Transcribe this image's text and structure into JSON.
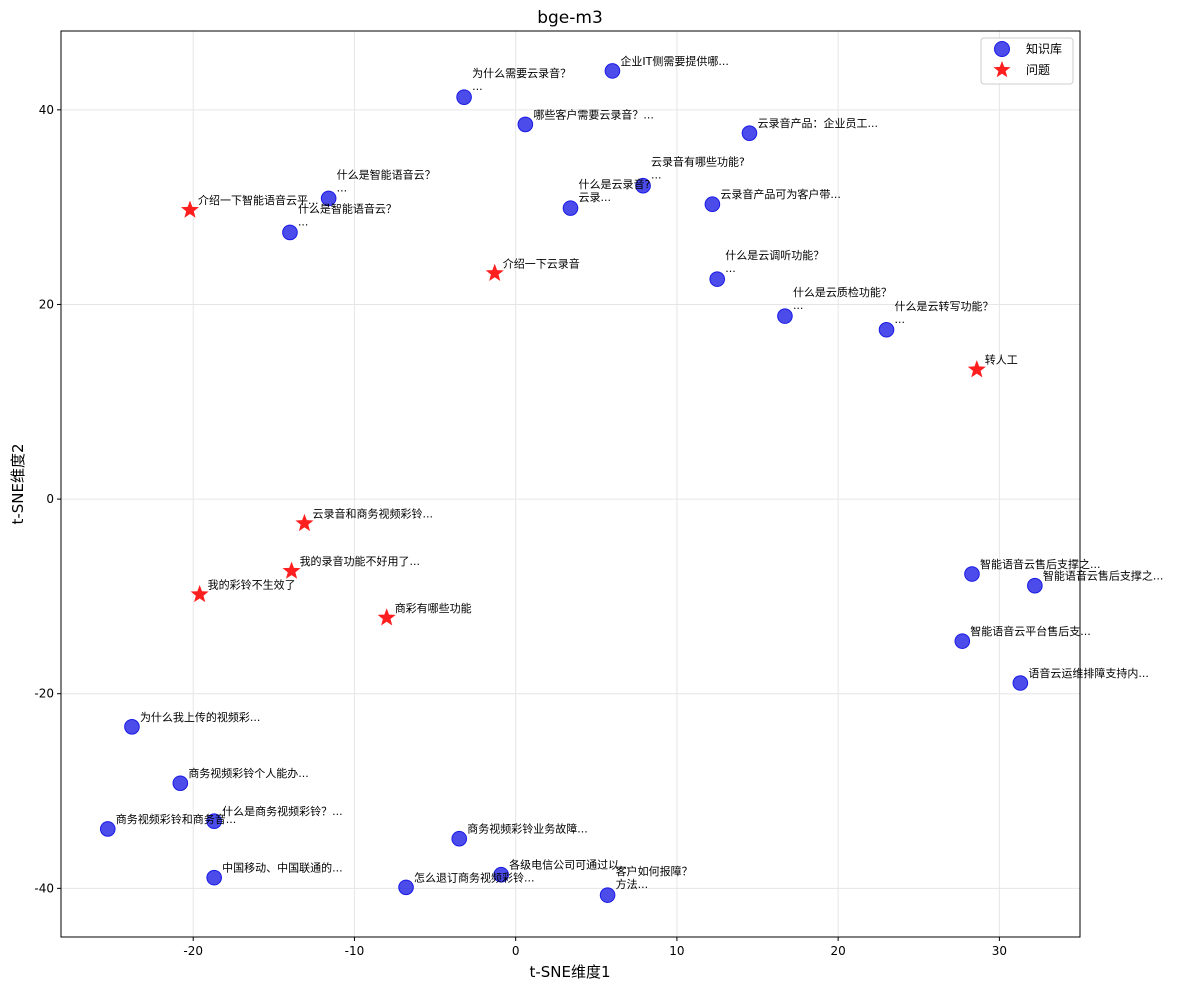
{
  "chart_data": {
    "type": "scatter",
    "title": "bge-m3",
    "xlabel": "t-SNE维度1",
    "ylabel": "t-SNE维度2",
    "xlim": [
      -28.2,
      35.0
    ],
    "ylim": [
      -45.0,
      48.1
    ],
    "xticks": [
      -20,
      -10,
      0,
      10,
      20,
      30
    ],
    "yticks": [
      -40,
      -20,
      0,
      20,
      40
    ],
    "grid": true,
    "legend_position": "top-right",
    "series": [
      {
        "name": "知识库",
        "marker": "circle",
        "color": "#1a1ae6",
        "points": [
          {
            "x": -3.2,
            "y": 41.3,
            "label": "为什么需要云录音？\n..."
          },
          {
            "x": 6.0,
            "y": 44.0,
            "label": "企业IT侧需要提供哪..."
          },
          {
            "x": 0.6,
            "y": 38.5,
            "label": "哪些客户需要云录音？..."
          },
          {
            "x": 14.5,
            "y": 37.6,
            "label": "云录音产品：企业员工..."
          },
          {
            "x": 7.9,
            "y": 32.2,
            "label": "云录音有哪些功能?\n..."
          },
          {
            "x": 3.4,
            "y": 29.9,
            "label": "什么是云录音?\n云录..."
          },
          {
            "x": 12.2,
            "y": 30.3,
            "label": "云录音产品可为客户带..."
          },
          {
            "x": -11.6,
            "y": 30.9,
            "label": "什么是智能语音云？\n..."
          },
          {
            "x": -14.0,
            "y": 27.4,
            "label": "什么是智能语音云？\n..."
          },
          {
            "x": 12.5,
            "y": 22.6,
            "label": "什么是云调听功能？\n..."
          },
          {
            "x": 16.7,
            "y": 18.8,
            "label": "什么是云质检功能？\n..."
          },
          {
            "x": 23.0,
            "y": 17.4,
            "label": "什么是云转写功能？\n..."
          },
          {
            "x": 28.3,
            "y": -7.7,
            "label": "智能语音云售后支撑之..."
          },
          {
            "x": 32.2,
            "y": -8.9,
            "label": "智能语音云售后支撑之..."
          },
          {
            "x": 27.7,
            "y": -14.6,
            "label": "智能语音云平台售后支..."
          },
          {
            "x": 31.3,
            "y": -18.9,
            "label": "语音云运维排障支持内..."
          },
          {
            "x": -23.8,
            "y": -23.4,
            "label": "为什么我上传的视频彩..."
          },
          {
            "x": -20.8,
            "y": -29.2,
            "label": "商务视频彩铃个人能办..."
          },
          {
            "x": -25.3,
            "y": -33.9,
            "label": "商务视频彩铃和商务音..."
          },
          {
            "x": -18.7,
            "y": -33.1,
            "label": "什么是商务视频彩铃？..."
          },
          {
            "x": -3.5,
            "y": -34.9,
            "label": "商务视频彩铃业务故障..."
          },
          {
            "x": -18.7,
            "y": -38.9,
            "label": "中国移动、中国联通的..."
          },
          {
            "x": -6.8,
            "y": -39.9,
            "label": "怎么退订商务视频彩铃..."
          },
          {
            "x": -0.9,
            "y": -38.6,
            "label": "各级电信公司可通过以..."
          },
          {
            "x": 5.7,
            "y": -40.7,
            "label": "客户如何报障？\n方法..."
          }
        ]
      },
      {
        "name": "问题",
        "marker": "star",
        "color": "#ff0000",
        "points": [
          {
            "x": -20.2,
            "y": 29.7,
            "label": "介绍一下智能语音云平..."
          },
          {
            "x": -1.3,
            "y": 23.2,
            "label": "介绍一下云录音"
          },
          {
            "x": 28.6,
            "y": 13.3,
            "label": "转人工"
          },
          {
            "x": -13.1,
            "y": -2.5,
            "label": "云录音和商务视频彩铃..."
          },
          {
            "x": -13.9,
            "y": -7.4,
            "label": "我的录音功能不好用了..."
          },
          {
            "x": -19.6,
            "y": -9.8,
            "label": "我的彩铃不生效了"
          },
          {
            "x": -8.0,
            "y": -12.2,
            "label": "商彩有哪些功能"
          }
        ]
      }
    ]
  }
}
